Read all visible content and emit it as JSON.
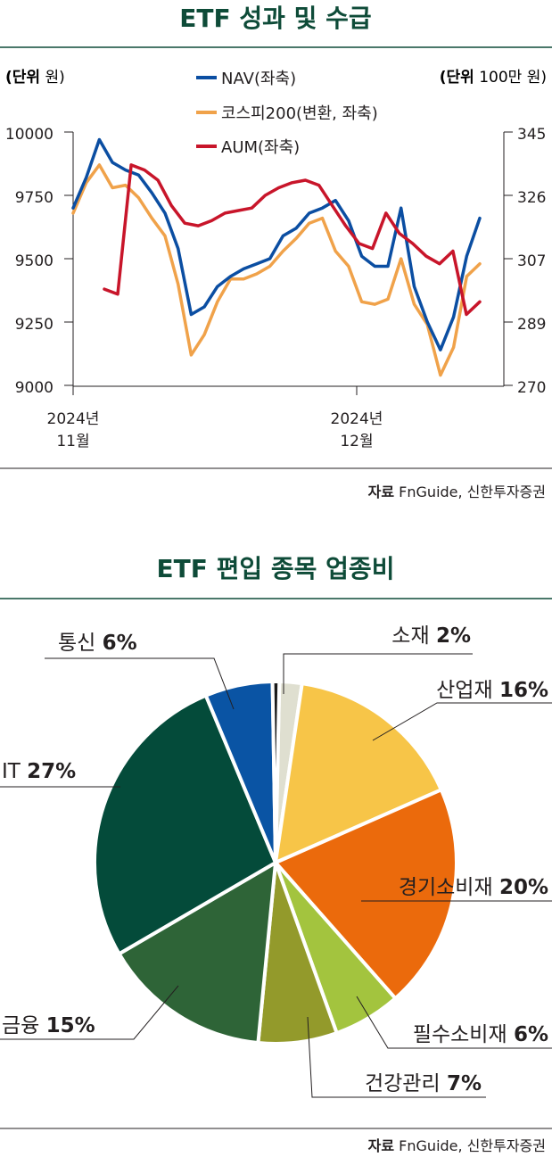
{
  "chart_data": [
    {
      "type": "line",
      "title": "ETF 성과 및 수급",
      "left_unit_bold": "(단위",
      "left_unit_rest": " 원)",
      "right_unit_bold": "(단위",
      "right_unit_rest": " 100만 원)",
      "x_ticks": [
        {
          "line1": "2024년",
          "line2": "11월"
        },
        {
          "line1": "2024년",
          "line2": "12월"
        }
      ],
      "y_left_ticks": [
        "10000",
        "9750",
        "9500",
        "9250",
        "9000"
      ],
      "y_left_range": [
        9000,
        10000
      ],
      "y_right_ticks": [
        "345",
        "326",
        "307",
        "289",
        "270"
      ],
      "y_right_range": [
        270,
        345
      ],
      "legend": [
        "NAV(좌축)",
        "코스피200(변환, 좌축)",
        "AUM(좌축)"
      ],
      "colors": [
        "#0b4ea2",
        "#f0a24a",
        "#c8152a"
      ],
      "series": [
        {
          "name": "NAV(좌축)",
          "values": [
            9700,
            9820,
            9970,
            9880,
            9850,
            9830,
            9760,
            9680,
            9540,
            9280,
            9310,
            9390,
            9430,
            9460,
            9480,
            9500,
            9590,
            9620,
            9680,
            9700,
            9730,
            9650,
            9510,
            9470,
            9470,
            9700,
            9390,
            9250,
            9140,
            9270,
            9510,
            9660
          ]
        },
        {
          "name": "코스피200(변환, 좌축)",
          "values": [
            9680,
            9800,
            9870,
            9780,
            9790,
            9740,
            9660,
            9590,
            9400,
            9120,
            9200,
            9330,
            9420,
            9420,
            9440,
            9470,
            9530,
            9580,
            9640,
            9660,
            9530,
            9470,
            9330,
            9320,
            9340,
            9500,
            9320,
            9240,
            9040,
            9150,
            9430,
            9480
          ]
        },
        {
          "name": "AUM(좌축)",
          "values": [
            null,
            9380,
            9360,
            9870,
            9850,
            9810,
            9710,
            9640,
            9630,
            9650,
            9680,
            9690,
            9700,
            9750,
            9780,
            9800,
            9810,
            9790,
            9710,
            9630,
            9560,
            9540,
            9680,
            9600,
            9560,
            9510,
            9480,
            9530,
            9280,
            9330
          ]
        }
      ],
      "source_bold": "자료",
      "source_rest": " FnGuide, 신한투자증권"
    },
    {
      "type": "pie",
      "title": "ETF 편입 종목 업종비",
      "slices": [
        {
          "label": "소재",
          "value": 2,
          "color": "#dfdfd0"
        },
        {
          "label": "산업재",
          "value": 16,
          "color": "#f7c548"
        },
        {
          "label": "경기소비재",
          "value": 20,
          "color": "#eb6a0c"
        },
        {
          "label": "필수소비재",
          "value": 6,
          "color": "#a3c43e"
        },
        {
          "label": "건강관리",
          "value": 7,
          "color": "#939a2b"
        },
        {
          "label": "금융",
          "value": 15,
          "color": "#2e6437"
        },
        {
          "label": "IT",
          "value": 27,
          "color": "#044b3a"
        },
        {
          "label": "통신",
          "value": 6,
          "color": "#0a54a4"
        },
        {
          "label": "",
          "value": 0.6,
          "color": "#1a1a1a"
        }
      ],
      "labels": [
        {
          "name": "소재",
          "pct": "2%"
        },
        {
          "name": "산업재",
          "pct": "16%"
        },
        {
          "name": "경기소비재",
          "pct": "20%"
        },
        {
          "name": "필수소비재",
          "pct": "6%"
        },
        {
          "name": "건강관리",
          "pct": "7%"
        },
        {
          "name": "금융",
          "pct": "15%"
        },
        {
          "name": "IT",
          "pct": "27%"
        },
        {
          "name": "통신",
          "pct": "6%"
        }
      ],
      "source_bold": "자료",
      "source_rest": " FnGuide, 신한투자증권"
    }
  ]
}
